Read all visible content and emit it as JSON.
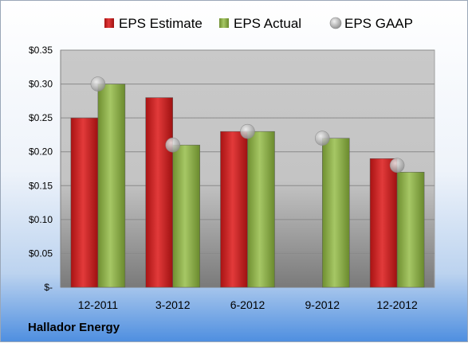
{
  "company": "Hallador Energy",
  "chart_data": {
    "type": "bar",
    "categories": [
      "12-2011",
      "3-2012",
      "6-2012",
      "9-2012",
      "12-2012"
    ],
    "series": [
      {
        "name": "EPS Estimate",
        "kind": "bar",
        "color": "#cc1f1f",
        "values": [
          0.25,
          0.28,
          0.23,
          null,
          0.19
        ]
      },
      {
        "name": "EPS Actual",
        "kind": "bar",
        "color": "#8cb04a",
        "values": [
          0.3,
          0.21,
          0.23,
          0.22,
          0.17
        ]
      },
      {
        "name": "EPS GAAP",
        "kind": "marker",
        "color": "#b8b8b8",
        "values": [
          0.3,
          0.21,
          0.23,
          0.22,
          0.18
        ]
      }
    ],
    "y_ticks": [
      {
        "value": 0,
        "label": "$-"
      },
      {
        "value": 0.05,
        "label": "$0.05"
      },
      {
        "value": 0.1,
        "label": "$0.10"
      },
      {
        "value": 0.15,
        "label": "$0.15"
      },
      {
        "value": 0.2,
        "label": "$0.20"
      },
      {
        "value": 0.25,
        "label": "$0.25"
      },
      {
        "value": 0.3,
        "label": "$0.30"
      },
      {
        "value": 0.35,
        "label": "$0.35"
      }
    ],
    "ylim": [
      0,
      0.35
    ],
    "grid": true,
    "legend": "top"
  }
}
